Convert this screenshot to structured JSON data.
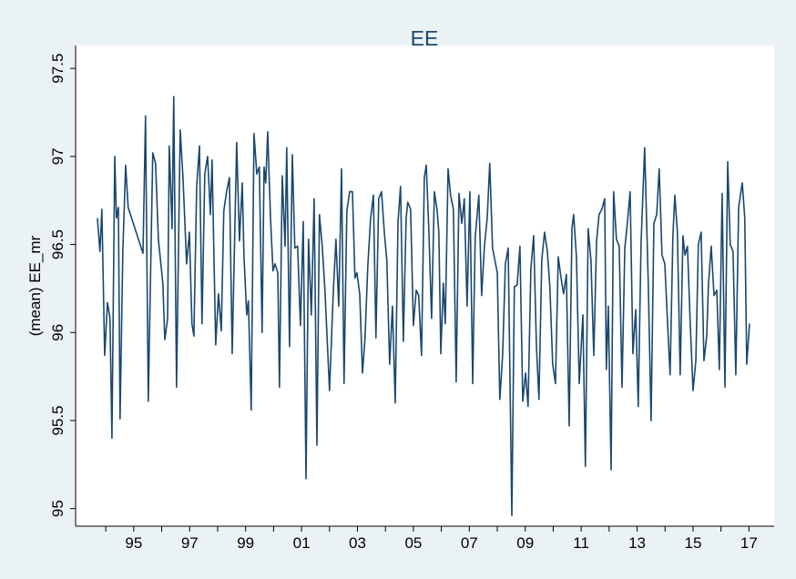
{
  "chart_data": {
    "type": "line",
    "title": "EE",
    "ylabel": "(mean) EE_mr",
    "color": "#1a476f",
    "x": [
      1993.7,
      1993.79,
      1993.86,
      1993.96,
      1994.06,
      1994.15,
      1994.22,
      1994.32,
      1994.38,
      1994.45,
      1994.51,
      1994.61,
      1994.71,
      1994.8,
      1995.33,
      1995.42,
      1995.52,
      1995.68,
      1995.78,
      1995.88,
      1996.04,
      1996.11,
      1996.21,
      1996.27,
      1996.37,
      1996.43,
      1996.53,
      1996.66,
      1996.76,
      1996.89,
      1996.99,
      1997.08,
      1997.15,
      1997.25,
      1997.35,
      1997.44,
      1997.54,
      1997.64,
      1997.74,
      1997.8,
      1997.93,
      1998.03,
      1998.13,
      1998.22,
      1998.32,
      1998.42,
      1998.52,
      1998.68,
      1998.78,
      1998.88,
      1998.94,
      1999.04,
      1999.1,
      1999.2,
      1999.3,
      1999.4,
      1999.49,
      1999.59,
      1999.66,
      1999.72,
      1999.79,
      1999.89,
      1999.98,
      2000.05,
      2000.15,
      2000.21,
      2000.31,
      2000.41,
      2000.47,
      2000.57,
      2000.67,
      2000.76,
      2000.86,
      2000.96,
      2001.06,
      2001.16,
      2001.25,
      2001.35,
      2001.45,
      2001.55,
      2001.64,
      2001.74,
      2001.84,
      2002.0,
      2002.13,
      2002.23,
      2002.33,
      2002.43,
      2002.52,
      2002.62,
      2002.72,
      2002.82,
      2002.91,
      2002.98,
      2003.08,
      2003.18,
      2003.27,
      2003.37,
      2003.47,
      2003.57,
      2003.66,
      2003.76,
      2003.86,
      2003.96,
      2004.05,
      2004.15,
      2004.25,
      2004.35,
      2004.45,
      2004.54,
      2004.64,
      2004.74,
      2004.8,
      2004.9,
      2005.0,
      2005.1,
      2005.19,
      2005.29,
      2005.39,
      2005.46,
      2005.55,
      2005.65,
      2005.75,
      2005.85,
      2005.91,
      2005.98,
      2006.07,
      2006.14,
      2006.24,
      2006.33,
      2006.43,
      2006.53,
      2006.63,
      2006.73,
      2006.82,
      2006.92,
      2007.02,
      2007.12,
      2007.21,
      2007.34,
      2007.44,
      2007.54,
      2007.64,
      2007.73,
      2007.83,
      2008.0,
      2008.09,
      2008.19,
      2008.29,
      2008.39,
      2008.52,
      2008.61,
      2008.71,
      2008.81,
      2008.91,
      2009.01,
      2009.1,
      2009.2,
      2009.3,
      2009.4,
      2009.49,
      2009.59,
      2009.69,
      2009.79,
      2009.88,
      2009.98,
      2010.08,
      2010.18,
      2010.28,
      2010.37,
      2010.47,
      2010.57,
      2010.67,
      2010.73,
      2010.83,
      2010.93,
      2011.06,
      2011.15,
      2011.25,
      2011.35,
      2011.45,
      2011.55,
      2011.64,
      2011.74,
      2011.84,
      2011.9,
      2011.97,
      2012.07,
      2012.16,
      2012.26,
      2012.36,
      2012.46,
      2012.56,
      2012.65,
      2012.75,
      2012.85,
      2012.95,
      2013.04,
      2013.14,
      2013.27,
      2013.4,
      2013.5,
      2013.6,
      2013.7,
      2013.79,
      2013.89,
      2013.99,
      2014.09,
      2014.18,
      2014.28,
      2014.35,
      2014.44,
      2014.54,
      2014.64,
      2014.71,
      2014.8,
      2014.9,
      2015.0,
      2015.1,
      2015.19,
      2015.29,
      2015.39,
      2015.49,
      2015.55,
      2015.65,
      2015.75,
      2015.85,
      2015.94,
      2016.04,
      2016.14,
      2016.24,
      2016.33,
      2016.43,
      2016.53,
      2016.63,
      2016.76,
      2016.85,
      2016.92,
      2017.02
    ],
    "values": [
      96.65,
      96.46,
      96.7,
      95.87,
      96.17,
      96.08,
      95.4,
      97.0,
      96.65,
      96.71,
      95.51,
      96.47,
      96.95,
      96.71,
      96.45,
      97.23,
      95.61,
      97.02,
      96.96,
      96.53,
      96.28,
      95.96,
      96.08,
      97.06,
      96.59,
      97.34,
      95.69,
      97.15,
      96.88,
      96.39,
      96.57,
      96.05,
      95.98,
      96.83,
      97.06,
      96.05,
      96.9,
      97.0,
      96.67,
      96.98,
      95.93,
      96.22,
      96.01,
      96.69,
      96.8,
      96.88,
      95.88,
      97.08,
      96.52,
      96.85,
      96.44,
      96.1,
      96.18,
      95.56,
      97.13,
      96.9,
      96.94,
      96.0,
      96.94,
      96.85,
      97.14,
      96.65,
      96.35,
      96.39,
      96.34,
      95.69,
      96.89,
      96.49,
      97.05,
      95.92,
      97.01,
      96.48,
      96.49,
      96.04,
      96.63,
      95.17,
      96.53,
      96.1,
      96.76,
      95.36,
      96.67,
      96.49,
      96.23,
      95.67,
      96.21,
      96.53,
      96.15,
      96.93,
      95.71,
      96.69,
      96.8,
      96.8,
      96.31,
      96.34,
      96.22,
      95.77,
      95.97,
      96.38,
      96.65,
      96.78,
      95.97,
      96.76,
      96.8,
      96.57,
      96.41,
      95.82,
      96.15,
      95.6,
      96.63,
      96.83,
      95.95,
      96.65,
      96.74,
      96.7,
      96.04,
      96.24,
      96.21,
      95.87,
      96.88,
      96.95,
      96.59,
      96.08,
      96.8,
      96.69,
      96.57,
      95.88,
      96.28,
      96.05,
      96.93,
      96.78,
      96.7,
      95.72,
      96.79,
      96.62,
      96.76,
      96.15,
      96.8,
      95.71,
      96.54,
      96.78,
      96.21,
      96.49,
      96.65,
      96.96,
      96.48,
      96.34,
      95.62,
      95.87,
      96.39,
      96.48,
      94.96,
      96.26,
      96.27,
      96.49,
      95.61,
      95.77,
      95.58,
      96.36,
      96.55,
      95.92,
      95.62,
      96.41,
      96.57,
      96.46,
      96.26,
      95.82,
      95.71,
      96.43,
      96.31,
      96.22,
      96.33,
      95.47,
      96.59,
      96.67,
      96.43,
      95.71,
      96.1,
      95.24,
      96.59,
      96.41,
      95.87,
      96.52,
      96.67,
      96.7,
      96.76,
      95.79,
      96.15,
      95.22,
      96.8,
      96.53,
      96.49,
      95.69,
      96.48,
      96.62,
      96.8,
      95.88,
      96.13,
      95.58,
      96.5,
      97.05,
      96.27,
      95.5,
      96.62,
      96.67,
      96.93,
      96.44,
      96.39,
      96.05,
      95.76,
      96.55,
      96.78,
      96.57,
      95.76,
      96.55,
      96.44,
      96.49,
      96.05,
      95.67,
      95.84,
      96.5,
      96.57,
      95.84,
      95.98,
      96.27,
      96.49,
      96.21,
      96.24,
      95.79,
      96.79,
      95.69,
      96.97,
      96.5,
      96.46,
      95.76,
      96.71,
      96.85,
      96.65,
      95.82,
      96.05
    ],
    "xlim": [
      1992.92,
      2017.9
    ],
    "ylim": [
      94.9,
      97.63
    ],
    "xticks": [
      {
        "value": 1995,
        "label": "95"
      },
      {
        "value": 1997,
        "label": "97"
      },
      {
        "value": 1999,
        "label": "99"
      },
      {
        "value": 2001,
        "label": "01"
      },
      {
        "value": 2003,
        "label": "03"
      },
      {
        "value": 2005,
        "label": "05"
      },
      {
        "value": 2007,
        "label": "07"
      },
      {
        "value": 2009,
        "label": "09"
      },
      {
        "value": 2011,
        "label": "11"
      },
      {
        "value": 2013,
        "label": "13"
      },
      {
        "value": 2015,
        "label": "15"
      },
      {
        "value": 2017,
        "label": "17"
      }
    ],
    "xminor_ticks": [
      1994,
      1996,
      1998,
      2000,
      2002,
      2004,
      2006,
      2008,
      2010,
      2012,
      2014,
      2016
    ],
    "yticks": [
      95,
      95.5,
      96,
      96.5,
      97,
      97.5
    ],
    "grid": false
  }
}
